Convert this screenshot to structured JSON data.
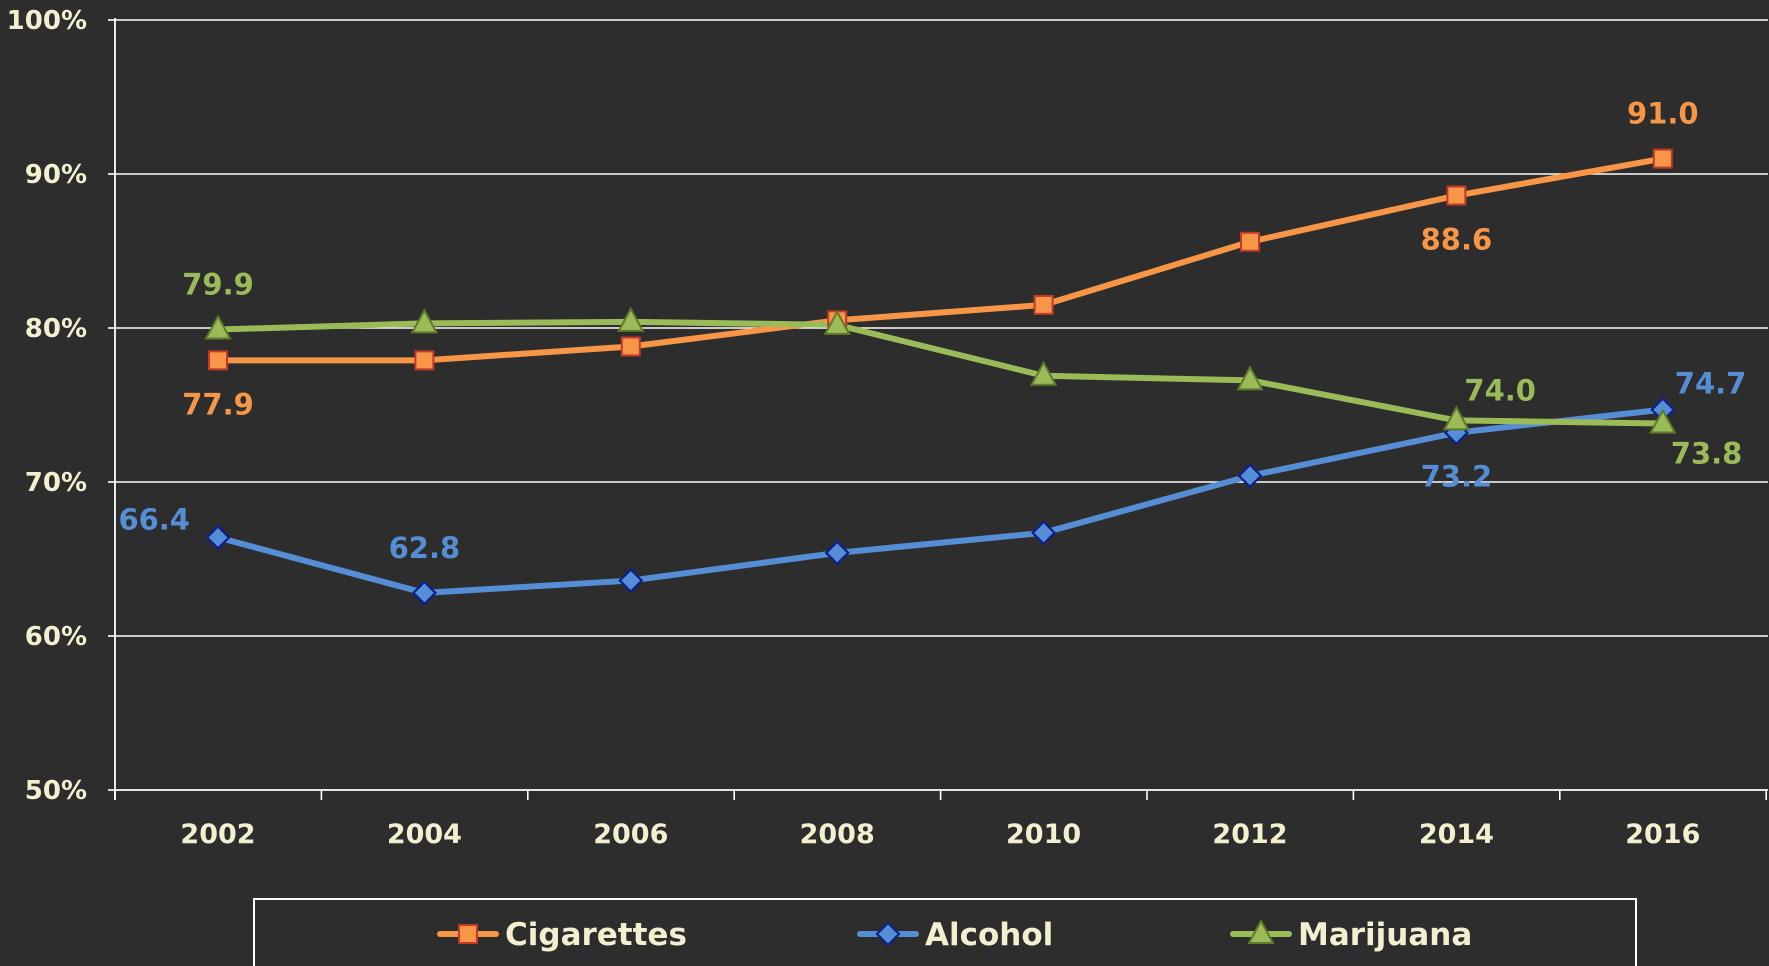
{
  "chart_data": {
    "type": "line",
    "title": "",
    "xlabel": "",
    "ylabel": "",
    "ylim": [
      50,
      100
    ],
    "y_tick_labels": [
      "50%",
      "60%",
      "70%",
      "80%",
      "90%",
      "100%"
    ],
    "y_ticks": [
      50,
      60,
      70,
      80,
      90,
      100
    ],
    "x": [
      "2002",
      "2004",
      "2006",
      "2008",
      "2010",
      "2012",
      "2014",
      "2016"
    ],
    "grid": true,
    "legend_position": "bottom",
    "series": [
      {
        "name": "Cigarettes",
        "color": "#f79646",
        "marker": "square",
        "values": [
          77.9,
          77.9,
          78.8,
          80.5,
          81.5,
          85.6,
          88.6,
          91.0
        ],
        "data_labels": [
          {
            "index": 0,
            "text": "77.9",
            "position": "below"
          },
          {
            "index": 6,
            "text": "88.6",
            "position": "below"
          },
          {
            "index": 7,
            "text": "91.0",
            "position": "above"
          }
        ]
      },
      {
        "name": "Alcohol",
        "color": "#558ed5",
        "marker": "diamond",
        "values": [
          66.4,
          62.8,
          63.6,
          65.4,
          66.7,
          70.4,
          73.2,
          74.7
        ],
        "data_labels": [
          {
            "index": 0,
            "text": "66.4",
            "position": "left"
          },
          {
            "index": 1,
            "text": "62.8",
            "position": "above"
          },
          {
            "index": 6,
            "text": "73.2",
            "position": "below"
          },
          {
            "index": 7,
            "text": "74.7",
            "position": "right"
          }
        ]
      },
      {
        "name": "Marijuana",
        "color": "#9bbb59",
        "marker": "triangle",
        "values": [
          79.9,
          80.3,
          80.4,
          80.2,
          76.9,
          76.6,
          74.0,
          73.8
        ],
        "data_labels": [
          {
            "index": 0,
            "text": "79.9",
            "position": "above"
          },
          {
            "index": 6,
            "text": "74.0",
            "position": "above-right"
          },
          {
            "index": 7,
            "text": "73.8",
            "position": "below-right"
          }
        ]
      }
    ]
  },
  "colors": {
    "background": "#2d2d2d",
    "axis_text": "#f3f0d0",
    "grid": "#ffffff"
  }
}
